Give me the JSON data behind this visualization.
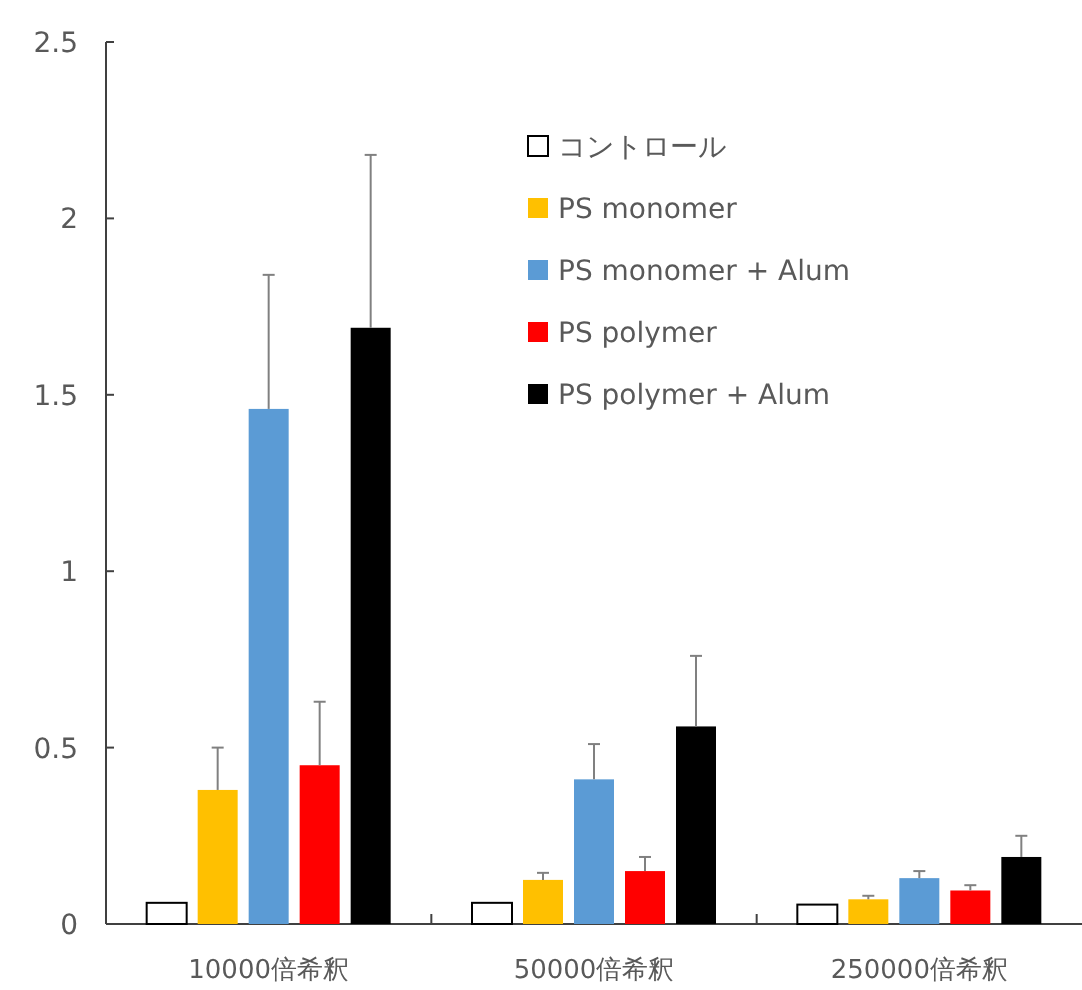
{
  "chart_data": {
    "type": "bar",
    "categories": [
      "10000倍希釈",
      "50000倍希釈",
      "250000倍希釈"
    ],
    "series": [
      {
        "name": "コントロール",
        "color": "#ffffff",
        "values": [
          0.06,
          0.06,
          0.055
        ],
        "errors": [
          null,
          null,
          null
        ]
      },
      {
        "name": "PS monomer",
        "color": "#ffc000",
        "values": [
          0.38,
          0.125,
          0.07
        ],
        "errors": [
          [
            0.38,
            0.5
          ],
          [
            0.125,
            0.145
          ],
          [
            0.07,
            0.08
          ]
        ]
      },
      {
        "name": "PS monomer + Alum",
        "color": "#5b9bd5",
        "values": [
          1.46,
          0.41,
          0.13
        ],
        "errors": [
          [
            1.46,
            1.84
          ],
          [
            0.41,
            0.51
          ],
          [
            0.13,
            0.15
          ]
        ]
      },
      {
        "name": "PS polymer",
        "color": "#ff0000",
        "values": [
          0.45,
          0.15,
          0.095
        ],
        "errors": [
          [
            0.45,
            0.63
          ],
          [
            0.15,
            0.19
          ],
          [
            0.095,
            0.11
          ]
        ]
      },
      {
        "name": "PS polymer + Alum",
        "color": "#000000",
        "values": [
          1.69,
          0.56,
          0.19
        ],
        "errors": [
          [
            1.69,
            2.18
          ],
          [
            0.56,
            0.76
          ],
          [
            0.19,
            0.25
          ]
        ]
      }
    ],
    "ylim": [
      0,
      2.5
    ],
    "yticks": [
      0,
      0.5,
      1,
      1.5,
      2,
      2.5
    ],
    "legend": "top right"
  }
}
